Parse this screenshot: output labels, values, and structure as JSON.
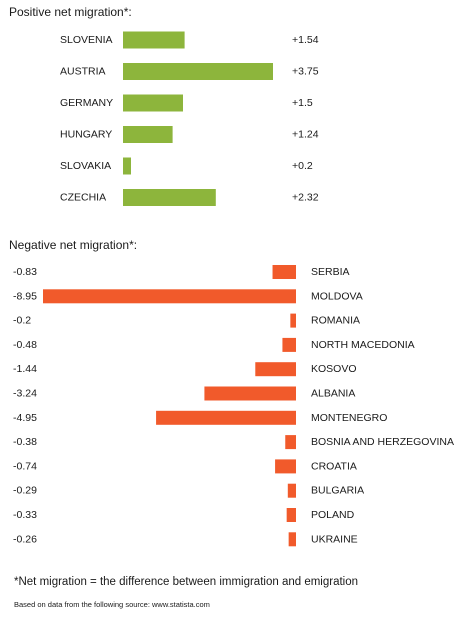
{
  "sections": {
    "positive_title": "Positive net migration*:",
    "negative_title": "Negative net migration*:"
  },
  "footnote": "*Net migration = the difference between immigration and emigration",
  "source": "Based on data from the following source: www.statista.com",
  "colors": {
    "positive": "#8db53c",
    "negative": "#f15a2b",
    "text": "#1a1a1a"
  },
  "chart_data": [
    {
      "type": "bar",
      "orientation": "horizontal",
      "categories": [
        "SLOVENIA",
        "AUSTRIA",
        "GERMANY",
        "HUNGARY",
        "SLOVAKIA",
        "CZECHIA"
      ],
      "values": [
        1.54,
        3.75,
        1.5,
        1.24,
        0.2,
        2.32
      ],
      "value_labels": [
        "+1.54",
        "+3.75",
        "+1.5",
        "+1.24",
        "+0.2",
        "+2.32"
      ],
      "title": "Positive net migration*:",
      "xlabel": "",
      "ylabel": "",
      "xlim": [
        0,
        3.75
      ],
      "grid": false
    },
    {
      "type": "bar",
      "orientation": "horizontal",
      "categories": [
        "SERBIA",
        "MOLDOVA",
        "ROMANIA",
        "NORTH MACEDONIA",
        "KOSOVO",
        "ALBANIA",
        "MONTENEGRO",
        "BOSNIA AND HERZEGOVINA",
        "CROATIA",
        "BULGARIA",
        "POLAND",
        "UKRAINE"
      ],
      "values": [
        -0.83,
        -8.95,
        -0.2,
        -0.48,
        -1.44,
        -3.24,
        -4.95,
        -0.38,
        -0.74,
        -0.29,
        -0.33,
        -0.26
      ],
      "value_labels": [
        "-0.83",
        "-8.95",
        "-0.2",
        "-0.48",
        "-1.44",
        "-3.24",
        "-4.95",
        "-0.38",
        "-0.74",
        "-0.29",
        "-0.33",
        "-0.26"
      ],
      "title": "Negative net migration*:",
      "xlabel": "",
      "ylabel": "",
      "xlim": [
        -8.95,
        0
      ],
      "grid": false
    }
  ]
}
